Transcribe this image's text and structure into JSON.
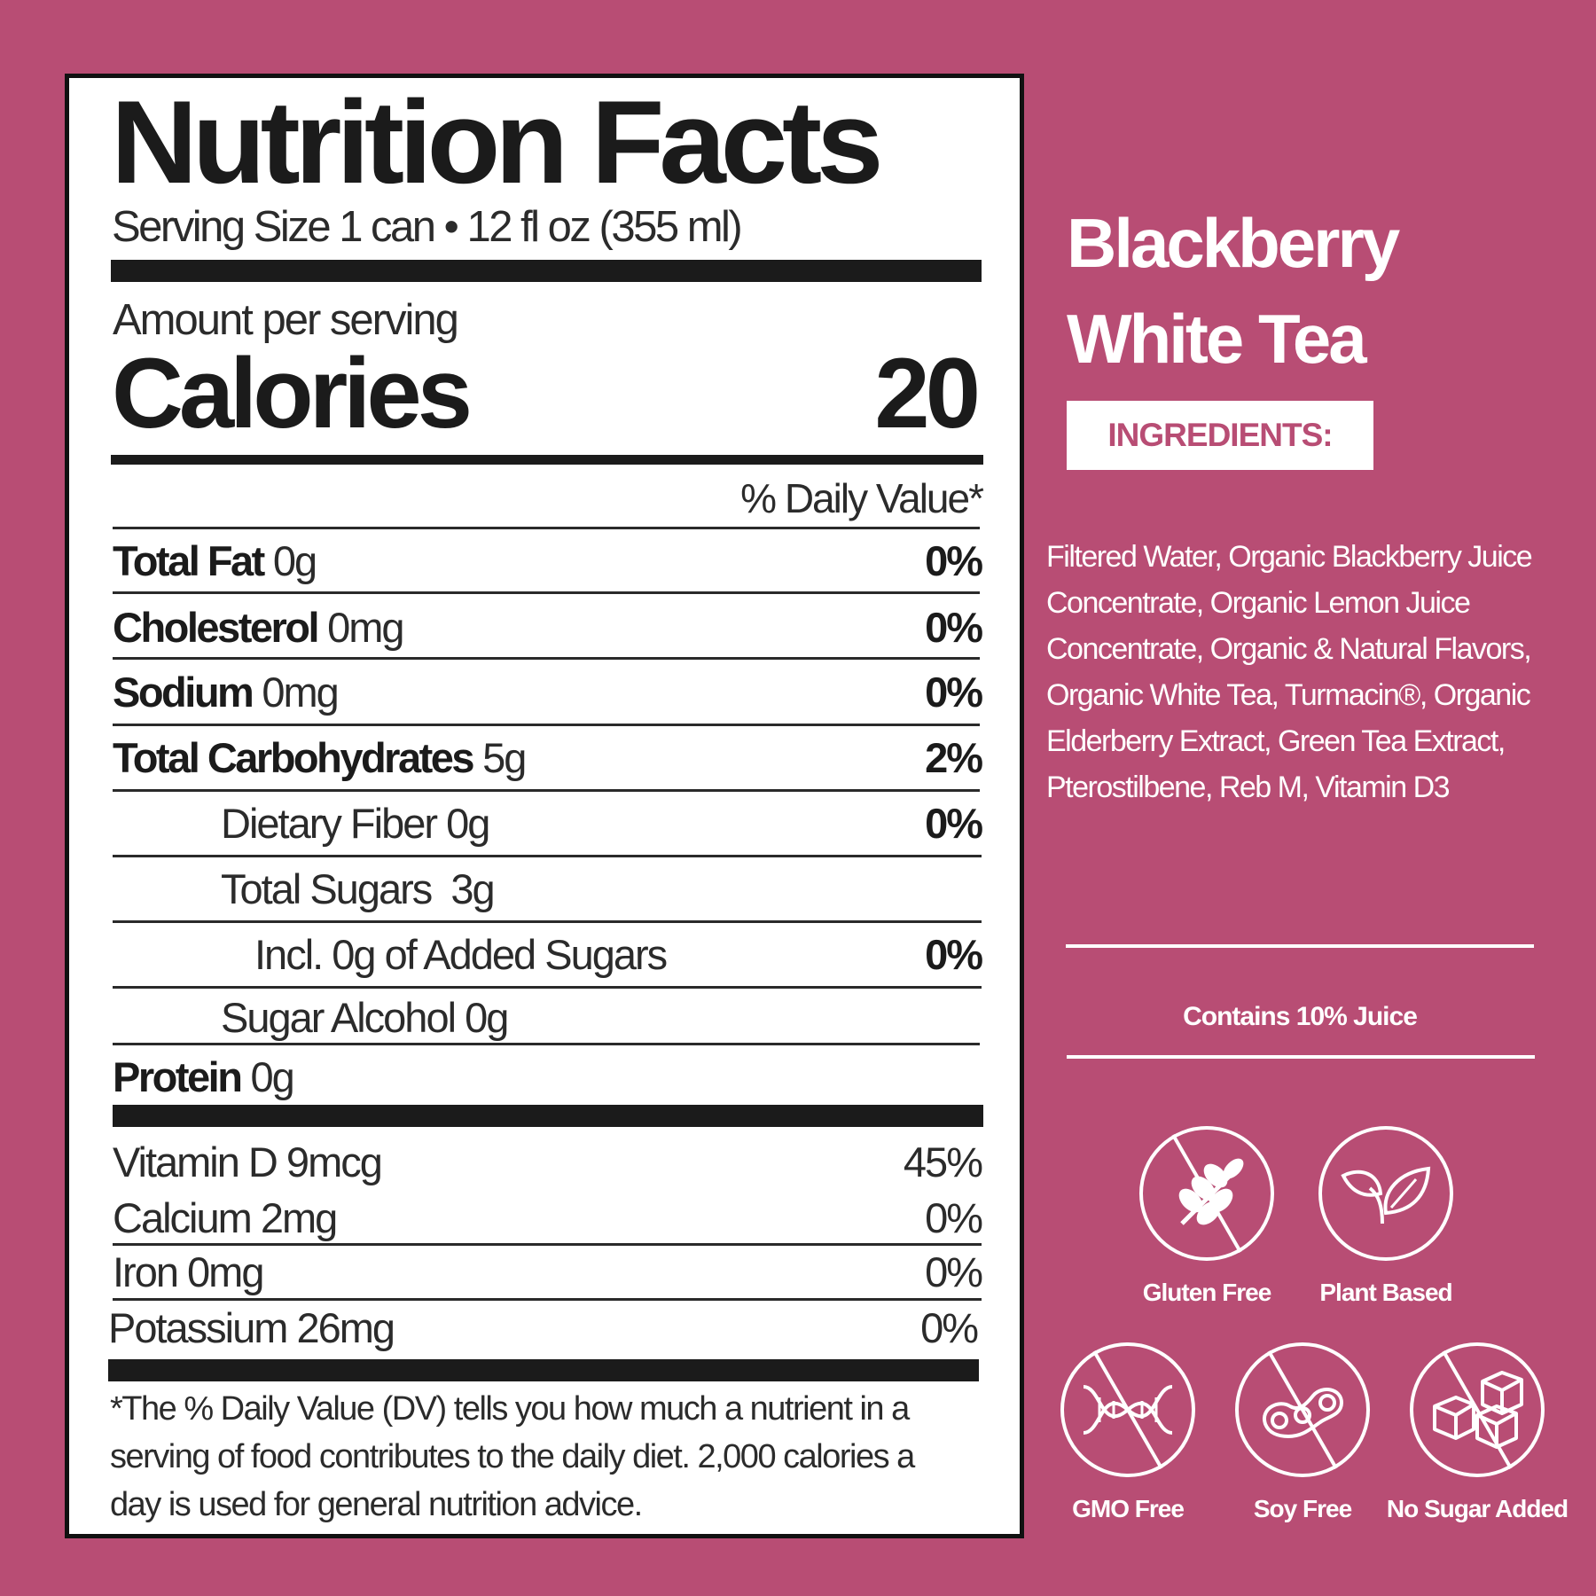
{
  "nutrition": {
    "title": "Nutrition Facts",
    "serving": "Serving Size 1 can • 12 fl oz (355 ml)",
    "amount_per_serving": "Amount per serving",
    "calories_label": "Calories",
    "calories_value": "20",
    "dv_header": "% Daily Value*",
    "rows": [
      {
        "bold": "Total Fat",
        "value": " 0g",
        "pct": "0%"
      },
      {
        "bold": "Cholesterol",
        "value": " 0mg",
        "pct": "0%"
      },
      {
        "bold": "Sodium",
        "value": " 0mg",
        "pct": "0%"
      },
      {
        "bold": "Total Carbohydrates",
        "value": " 5g",
        "pct": "2%"
      },
      {
        "bold": "",
        "value": "Dietary Fiber 0g",
        "pct": "0%"
      },
      {
        "bold": "",
        "value": "Total Sugars  3g",
        "pct": ""
      },
      {
        "bold": "",
        "value": "Incl. 0g of Added Sugars",
        "pct": "0%"
      },
      {
        "bold": "",
        "value": "Sugar Alcohol 0g",
        "pct": ""
      },
      {
        "bold": "Protein",
        "value": " 0g",
        "pct": ""
      }
    ],
    "vitamins": [
      {
        "label": "Vitamin D 9mcg",
        "pct": "45%"
      },
      {
        "label": "Calcium 2mg",
        "pct": "0%"
      },
      {
        "label": "Iron 0mg",
        "pct": "0%"
      },
      {
        "label": "Potassium 26mg",
        "pct": "0%"
      }
    ],
    "footnote": "*The % Daily Value (DV) tells you how much a nutrient in a serving of food contributes to the daily diet. 2,000 calories a day is used for general nutrition advice."
  },
  "product": {
    "name_line1": "Blackberry",
    "name_line2": "White Tea",
    "ingredients_label": "INGREDIENTS:",
    "ingredients": "Filtered Water, Organic Blackberry Juice Concentrate, Organic Lemon Juice Concentrate, Organic & Natural Flavors, Organic White Tea, Turmacin®, Organic Elderberry Extract, Green Tea Extract, Pterostilbene, Reb M, Vitamin D3",
    "juice_note": "Contains 10% Juice",
    "badges": [
      {
        "label": "Gluten Free",
        "icon": "wheat-icon"
      },
      {
        "label": "Plant Based",
        "icon": "leaf-icon"
      },
      {
        "label": "GMO Free",
        "icon": "dna-icon"
      },
      {
        "label": "Soy Free",
        "icon": "soybean-icon"
      },
      {
        "label": "No Sugar Added",
        "icon": "sugar-cubes-icon"
      }
    ]
  },
  "colors": {
    "background": "#b84d74",
    "panel": "#ffffff",
    "ink": "#1b1b1b"
  }
}
